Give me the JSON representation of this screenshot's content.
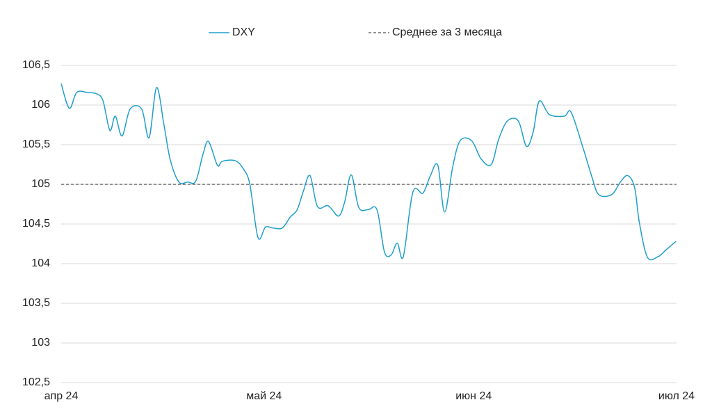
{
  "chart_data": {
    "type": "line",
    "x": [
      0,
      1.2,
      2.3,
      3.8,
      5.3,
      6.2,
      7.2,
      8.0,
      9.0,
      10.2,
      11.9,
      13.0,
      14.1,
      15.2,
      16.1,
      17.4,
      18.7,
      19.9,
      21.0,
      21.8,
      23.1,
      23.8,
      25.7,
      26.9,
      27.9,
      29.1,
      30.2,
      31.3,
      32.7,
      33.9,
      34.9,
      35.8,
      36.8,
      37.9,
      39.5,
      41.0,
      41.9,
      42.9,
      44.0,
      45.4,
      46.7,
      47.8,
      48.8,
      49.7,
      50.6,
      52.0,
      53.5,
      54.6,
      55.7,
      56.7,
      57.9,
      59.0,
      60.7,
      62.1,
      63.6,
      64.7,
      66.0,
      67.6,
      68.8,
      69.8,
      70.7,
      72.2,
      74.4,
      75.4,
      77.1,
      78.5,
      79.5,
      81.4,
      82.7,
      83.8,
      84.8,
      85.5,
      86.7,
      88.3,
      89.4,
      90.9
    ],
    "series": [
      {
        "name": "DXY",
        "color": "#1f9fcb",
        "values": [
          106.27,
          105.96,
          106.16,
          106.16,
          106.14,
          106.05,
          105.68,
          105.86,
          105.61,
          105.95,
          105.95,
          105.59,
          106.22,
          105.75,
          105.32,
          105.03,
          105.03,
          105.04,
          105.39,
          105.54,
          105.24,
          105.29,
          105.3,
          105.2,
          105.0,
          104.33,
          104.46,
          104.45,
          104.45,
          104.59,
          104.68,
          104.91,
          105.11,
          104.72,
          104.73,
          104.6,
          104.77,
          105.12,
          104.71,
          104.68,
          104.68,
          104.15,
          104.11,
          104.26,
          104.09,
          104.9,
          104.89,
          105.11,
          105.24,
          104.65,
          105.22,
          105.55,
          105.55,
          105.32,
          105.25,
          105.57,
          105.8,
          105.8,
          105.48,
          105.66,
          106.05,
          105.88,
          105.86,
          105.91,
          105.48,
          105.09,
          104.87,
          104.87,
          105.03,
          105.11,
          104.96,
          104.52,
          104.08,
          104.09,
          104.17,
          104.28
        ]
      }
    ],
    "reference_lines": [
      {
        "name": "Среднее за 3 месяца",
        "value": 105,
        "color": "#222222",
        "dashed": true
      }
    ],
    "xlim": [
      0,
      91
    ],
    "xticks": [
      {
        "value": 0,
        "label": "апр 24"
      },
      {
        "value": 30,
        "label": "май 24"
      },
      {
        "value": 61,
        "label": "июн 24"
      },
      {
        "value": 91,
        "label": "июл 24"
      }
    ],
    "ylim": [
      102.5,
      106.5
    ],
    "yticks": [
      {
        "value": 102.5,
        "label": "102,5"
      },
      103,
      {
        "value": 103.5,
        "label": "103,5"
      },
      104,
      {
        "value": 104.5,
        "label": "104,5"
      },
      105,
      {
        "value": 105.5,
        "label": "105,5"
      },
      106,
      {
        "value": 106.5,
        "label": "106,5"
      }
    ],
    "grid": true,
    "legend": "top"
  }
}
